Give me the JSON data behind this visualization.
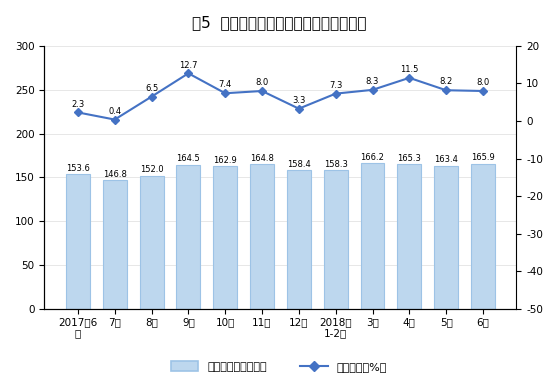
{
  "title": "图5  规模以上工业原油加工量月度走势图",
  "categories": [
    "2017年6\n月",
    "7月",
    "8月",
    "9月",
    "10月",
    "11月",
    "12月",
    "2018年\n1-2月",
    "3月",
    "4月",
    "5月",
    "6月"
  ],
  "bar_values": [
    153.6,
    146.8,
    152.0,
    164.5,
    162.9,
    164.8,
    158.4,
    158.3,
    166.2,
    165.3,
    163.4,
    165.9
  ],
  "bar_labels": [
    "153.6",
    "146.8",
    "152.0",
    "164.5",
    "162.9",
    "164.8",
    "158.4",
    "158.3",
    "166.2",
    "165.3",
    "163.4",
    "165.9"
  ],
  "line_values": [
    2.3,
    0.4,
    6.5,
    12.7,
    7.4,
    8.0,
    3.3,
    7.3,
    8.3,
    11.5,
    8.2,
    8.0
  ],
  "line_labels": [
    "2.3",
    "0.4",
    "6.5",
    "12.7",
    "7.4",
    "8.0",
    "3.3",
    "7.3",
    "8.3",
    "11.5",
    "8.2",
    "8.0"
  ],
  "bar_color": "#BDD7EE",
  "bar_edge_color": "#9DC3E6",
  "line_color": "#4472C4",
  "marker_color": "#4472C4",
  "left_ylim": [
    0,
    300
  ],
  "left_yticks": [
    0,
    50,
    100,
    150,
    200,
    250,
    300
  ],
  "right_ylim": [
    -50,
    20
  ],
  "right_yticks": [
    -50,
    -40,
    -30,
    -20,
    -10,
    0,
    10,
    20
  ],
  "legend_bar_label": "日均加工量（万吨）",
  "legend_line_label": "当月增速（%）",
  "background_color": "#ffffff",
  "title_fontsize": 11,
  "tick_fontsize": 7.5,
  "label_fontsize": 6,
  "legend_fontsize": 8
}
